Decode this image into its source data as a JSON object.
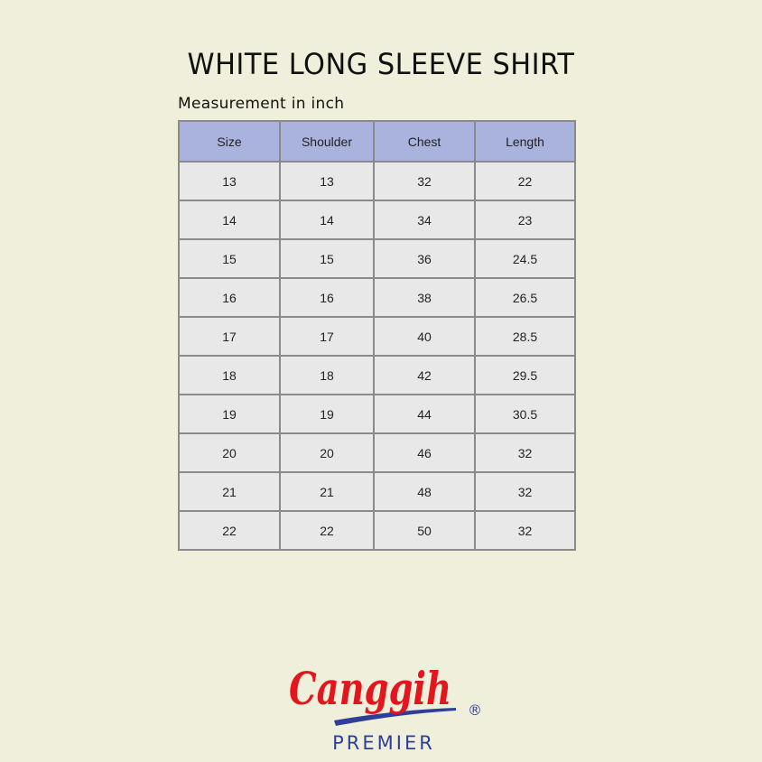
{
  "title": "WHITE LONG SLEEVE SHIRT",
  "subtitle": "Measurement in inch",
  "table": {
    "headers": [
      "Size",
      "Shoulder",
      "Chest",
      "Length"
    ],
    "rows": [
      [
        "13",
        "13",
        "32",
        "22"
      ],
      [
        "14",
        "14",
        "34",
        "23"
      ],
      [
        "15",
        "15",
        "36",
        "24.5"
      ],
      [
        "16",
        "16",
        "38",
        "26.5"
      ],
      [
        "17",
        "17",
        "40",
        "28.5"
      ],
      [
        "18",
        "18",
        "42",
        "29.5"
      ],
      [
        "19",
        "19",
        "44",
        "30.5"
      ],
      [
        "20",
        "20",
        "46",
        "32"
      ],
      [
        "21",
        "21",
        "48",
        "32"
      ],
      [
        "22",
        "22",
        "50",
        "32"
      ]
    ]
  },
  "logo": {
    "script": "Canggih",
    "registered": "®",
    "tagline": "PREMIER",
    "red": "#e3161d",
    "blue": "#2e3f9a"
  }
}
